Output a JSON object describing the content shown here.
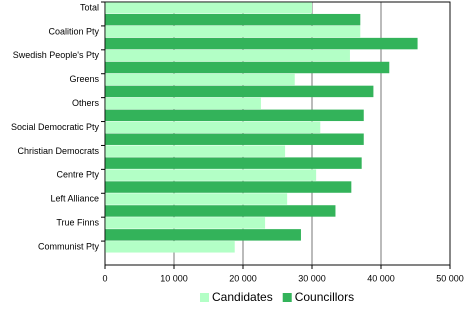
{
  "chart_data": {
    "type": "bar",
    "orientation": "horizontal",
    "categories": [
      "Total",
      "Coalition Pty",
      "Swedish People's Pty",
      "Greens",
      "Others",
      "Social Democratic Pty",
      "Christian Democrats",
      "Centre Pty",
      "Left Alliance",
      "True Finns",
      "Communist Pty"
    ],
    "series": [
      {
        "name": "Candidates",
        "color": "#b3ffc6",
        "values": [
          30000,
          37000,
          35500,
          27500,
          22600,
          31200,
          26100,
          30600,
          26400,
          23200,
          18800
        ]
      },
      {
        "name": "Councillors",
        "color": "#33b35a",
        "values": [
          37000,
          45300,
          41200,
          38900,
          37500,
          37500,
          37200,
          35700,
          33400,
          28400,
          null
        ]
      }
    ],
    "xlim": [
      0,
      50000
    ],
    "xticks": [
      0,
      {
        "value": 10000,
        "label": "10 000"
      },
      {
        "value": 20000,
        "label": "20 000"
      },
      {
        "value": 30000,
        "label": "30 000"
      },
      {
        "value": 40000,
        "label": "40 000"
      },
      {
        "value": 50000,
        "label": "50 000"
      }
    ],
    "grid": true,
    "legend": "bottom"
  }
}
